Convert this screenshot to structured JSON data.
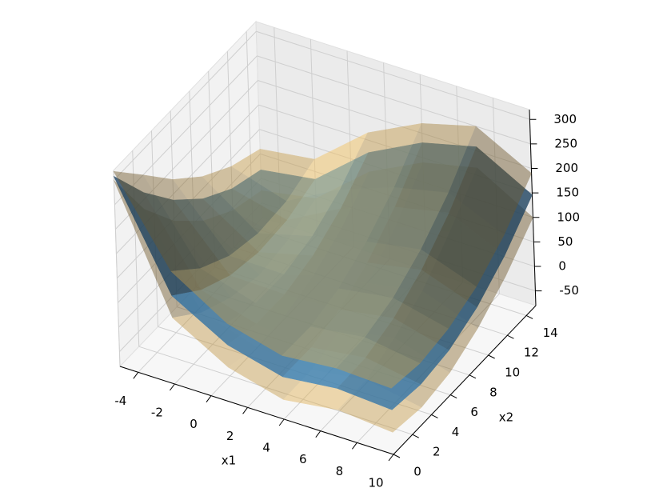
{
  "chart_data": {
    "type": "surface3d",
    "xlabel": "x1",
    "ylabel": "x2",
    "x": [
      -5,
      -2,
      1,
      4,
      7,
      10
    ],
    "y": [
      0,
      3,
      6,
      9,
      12,
      15
    ],
    "xlim": [
      -5,
      10
    ],
    "ylim": [
      0,
      15
    ],
    "zlim": [
      -80,
      320
    ],
    "xticks": [
      -4,
      -2,
      0,
      2,
      4,
      6,
      8,
      10
    ],
    "yticks": [
      0,
      2,
      4,
      6,
      8,
      10,
      12,
      14
    ],
    "zticks": [
      -50,
      0,
      50,
      100,
      150,
      200,
      250,
      300
    ],
    "grid": true,
    "series": [
      {
        "color": "#f5c15a",
        "values": [
          [
            300,
            180,
            95,
            35,
            -5,
            -25
          ],
          [
            55,
            5,
            -25,
            -40,
            -30,
            -5
          ],
          [
            -10,
            -30,
            -25,
            -5,
            30,
            85
          ],
          [
            -40,
            -40,
            -20,
            15,
            70,
            140
          ],
          [
            -25,
            -25,
            0,
            35,
            95,
            165
          ],
          [
            -35,
            -45,
            -35,
            -5,
            40,
            100
          ]
        ]
      },
      {
        "color": "#3b8fd0",
        "values": [
          [
            308.1,
            214.0,
            137.9,
            79.8,
            39.6,
            17.5
          ],
          [
            100.1,
            50.9,
            19.7,
            6.5,
            11.3,
            34.1
          ],
          [
            35.8,
            17.6,
            17.3,
            35.1,
            70.9,
            124.6
          ],
          [
            6.6,
            5.4,
            22.2,
            57.0,
            109.8,
            180.6
          ],
          [
            18.7,
            20.5,
            40.4,
            78.2,
            134.1,
            208.1
          ],
          [
            10.9,
            1.9,
            10.9,
            37.9,
            82.9,
            145.9
          ]
        ]
      },
      {
        "color": "#f5c15a",
        "values": [
          [
            318,
            250,
            180,
            125,
            85,
            60
          ],
          [
            150,
            95,
            60,
            45,
            50,
            75
          ],
          [
            80,
            60,
            58,
            75,
            110,
            165
          ],
          [
            50,
            48,
            65,
            100,
            150,
            220
          ],
          [
            60,
            62,
            82,
            120,
            175,
            250
          ],
          [
            55,
            45,
            55,
            80,
            125,
            190
          ]
        ]
      }
    ]
  }
}
